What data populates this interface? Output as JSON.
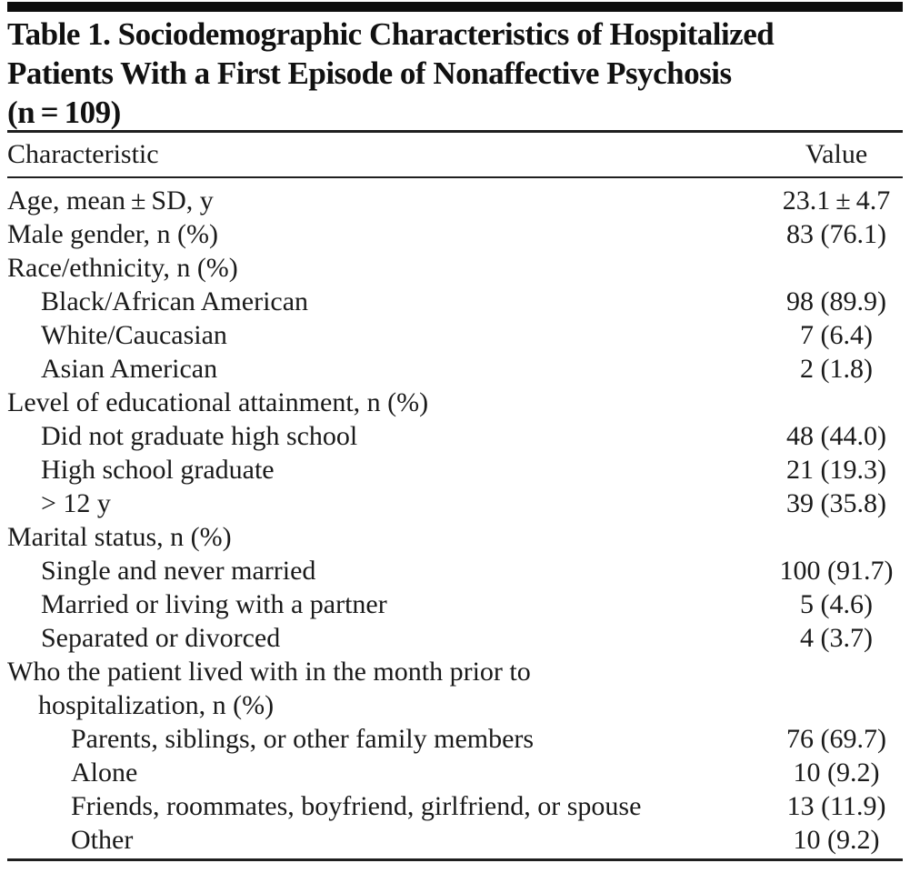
{
  "colors": {
    "background": "#ffffff",
    "text": "#1a1a1a",
    "rule": "#1f1f1f",
    "top_bar": "#0d0d0d"
  },
  "table": {
    "title": "Table 1. Sociodemographic Characteristics of Hospitalized\nPatients With a First Episode of Nonaffective Psychosis\n(n = 109)",
    "columns": [
      "Characteristic",
      "Value"
    ],
    "rows": [
      {
        "label": "Age, mean ± SD, y",
        "value": "23.1 ± 4.7",
        "indent": 0,
        "hang": false
      },
      {
        "label": "Male gender, n (%)",
        "value": "83 (76.1)",
        "indent": 0,
        "hang": false
      },
      {
        "label": "Race/ethnicity, n (%)",
        "value": "",
        "indent": 0,
        "hang": false
      },
      {
        "label": "Black/African American",
        "value": "98 (89.9)",
        "indent": 1,
        "hang": false
      },
      {
        "label": "White/Caucasian",
        "value": "7 (6.4)",
        "indent": 1,
        "hang": false
      },
      {
        "label": "Asian American",
        "value": "2 (1.8)",
        "indent": 1,
        "hang": false
      },
      {
        "label": "Level of educational attainment, n (%)",
        "value": "",
        "indent": 0,
        "hang": false
      },
      {
        "label": "Did not graduate high school",
        "value": "48 (44.0)",
        "indent": 1,
        "hang": false
      },
      {
        "label": "High school graduate",
        "value": "21 (19.3)",
        "indent": 1,
        "hang": false
      },
      {
        "label": "> 12 y",
        "value": "39 (35.8)",
        "indent": 1,
        "hang": false
      },
      {
        "label": "Marital status, n (%)",
        "value": "",
        "indent": 0,
        "hang": false
      },
      {
        "label": "Single and never married",
        "value": "100 (91.7)",
        "indent": 1,
        "hang": false
      },
      {
        "label": "Married or living with a partner",
        "value": "5 (4.6)",
        "indent": 1,
        "hang": false
      },
      {
        "label": "Separated or divorced",
        "value": "4 (3.7)",
        "indent": 1,
        "hang": false
      },
      {
        "label": "Who the patient lived with in the month prior to\nhospitalization, n (%)",
        "value": "",
        "indent": 0,
        "hang": true
      },
      {
        "label": "Parents, siblings, or other family members",
        "value": "76 (69.7)",
        "indent": 2,
        "hang": false
      },
      {
        "label": "Alone",
        "value": "10 (9.2)",
        "indent": 2,
        "hang": false
      },
      {
        "label": "Friends, roommates, boyfriend, girlfriend, or spouse",
        "value": "13 (11.9)",
        "indent": 2,
        "hang": false
      },
      {
        "label": "Other",
        "value": "10 (9.2)",
        "indent": 2,
        "hang": false
      }
    ]
  }
}
